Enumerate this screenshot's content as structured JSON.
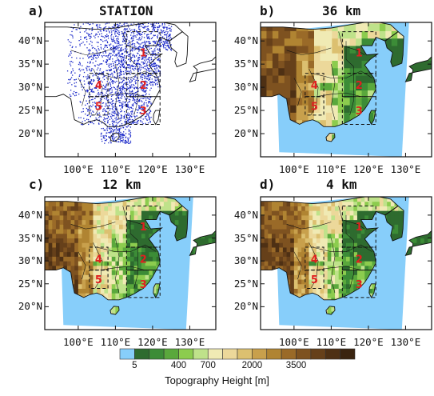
{
  "panels": [
    {
      "id": "a",
      "label": "a)",
      "title": "STATION",
      "type": "stations"
    },
    {
      "id": "b",
      "label": "b)",
      "title": "36 km",
      "type": "topography"
    },
    {
      "id": "c",
      "label": "c)",
      "title": "12 km",
      "type": "topography"
    },
    {
      "id": "d",
      "label": "d)",
      "title": "4 km",
      "type": "topography"
    }
  ],
  "axes": {
    "lat_ticks": [
      "20°N",
      "25°N",
      "30°N",
      "35°N",
      "40°N"
    ],
    "lat_values": [
      20,
      25,
      30,
      35,
      40
    ],
    "lon_ticks": [
      "100°E",
      "110°E",
      "120°E",
      "130°E"
    ],
    "lon_values": [
      100,
      110,
      120,
      130
    ],
    "lon_range": [
      91,
      137
    ],
    "lat_range": [
      15,
      44
    ]
  },
  "regions": [
    {
      "label": "1",
      "lon_range": [
        113,
        122
      ],
      "lat_range": [
        33,
        42
      ]
    },
    {
      "label": "2",
      "lon_range": [
        113,
        122
      ],
      "lat_range": [
        28,
        33
      ]
    },
    {
      "label": "3",
      "lon_range": [
        113,
        122
      ],
      "lat_range": [
        22,
        28
      ]
    },
    {
      "label": "4",
      "lon_range": [
        103,
        108
      ],
      "lat_range": [
        28,
        33
      ]
    },
    {
      "label": "5",
      "lon_range": [
        103,
        108
      ],
      "lat_range": [
        24,
        28
      ]
    }
  ],
  "colorbar": {
    "title": "Topography Height [m]",
    "labels": [
      "5",
      "400",
      "700",
      "2000",
      "3500"
    ],
    "colors": [
      "#87cefa",
      "#2e6b2f",
      "#3c8c37",
      "#5aa83c",
      "#8ccc4e",
      "#bfe28a",
      "#f0eab4",
      "#ecd89a",
      "#dcc070",
      "#c8a04c",
      "#b08432",
      "#9a6a28",
      "#7e5220",
      "#66401a",
      "#4e3014",
      "#3a2410"
    ]
  },
  "colors": {
    "station_dot": "#1a28c8",
    "region_label": "#e02020",
    "boundary": "#111111"
  }
}
